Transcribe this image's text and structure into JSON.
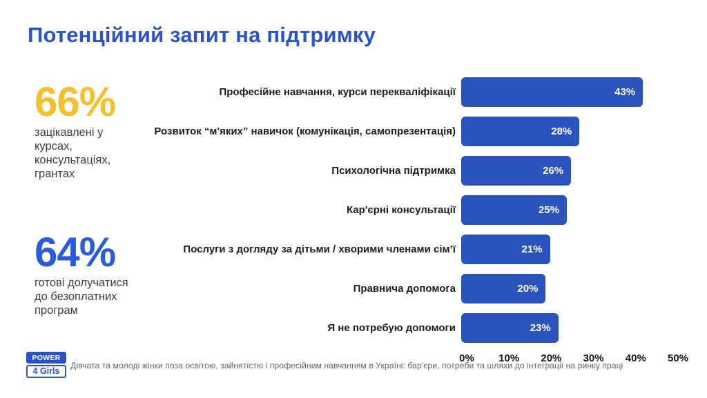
{
  "page": {
    "title": "Потенційний запит на підтримку"
  },
  "stats": [
    {
      "value": "66%",
      "caption": "зацікавлені у курсах, консультаціях, грантах"
    },
    {
      "value": "64%",
      "caption": "готові долучатися до безоплатних програм"
    }
  ],
  "chart_data": {
    "type": "bar",
    "orientation": "horizontal",
    "title": "Потенційний запит на підтримку",
    "categories": [
      "Професійне навчання, курси перекваліфікації",
      "Розвиток “м'яких” навичок (комунікація, самопрезентація)",
      "Психологічна підтримка",
      "Кар'єрні консультації",
      "Послуги з догляду за дітьми / хворими членами сім’ї",
      "Правнича допомога",
      "Я не потребую допомоги"
    ],
    "values": [
      43,
      28,
      26,
      25,
      21,
      20,
      23
    ],
    "value_labels": [
      "43%",
      "28%",
      "26%",
      "25%",
      "21%",
      "20%",
      "23%"
    ],
    "xlim": [
      0,
      50
    ],
    "x_ticks": [
      "0%",
      "10%",
      "20%",
      "30%",
      "40%",
      "50%"
    ],
    "bar_color": "#2A53BE",
    "grid": false,
    "legend": false
  },
  "footer": {
    "logo_line1": "POWER",
    "logo_line2": "4 Girls",
    "source_text": "Дівчата та молоді жінки  поза освітою, зайнятістю і професійним навчанням в Україні: бар'єри, потреби та шляхи до інтеграції на ринку праці"
  },
  "colors": {
    "title_blue": "#2B52C9",
    "bar_blue": "#2A53BE",
    "stat_yellow": "#F5C02F",
    "stat_blue": "#2A5ADF",
    "logo_blue": "#2B52C9"
  }
}
